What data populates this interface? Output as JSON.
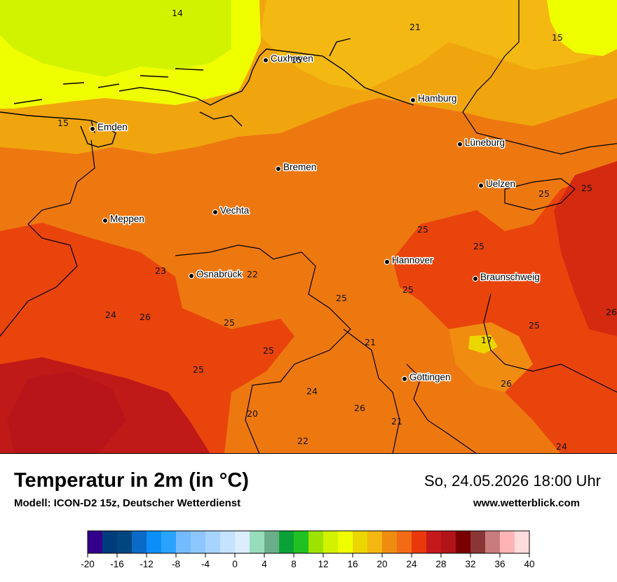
{
  "cities": [
    {
      "name": "Cuxhaven"
    },
    {
      "name": "Hamburg"
    },
    {
      "name": "Emden"
    },
    {
      "name": "Lüneburg"
    },
    {
      "name": "Bremen"
    },
    {
      "name": "Uelzen"
    },
    {
      "name": "Vechta"
    },
    {
      "name": "Meppen"
    },
    {
      "name": "Hannover"
    },
    {
      "name": "Osnabrück"
    },
    {
      "name": "Braunschweig"
    },
    {
      "name": "Göttingen"
    }
  ],
  "temperature_labels": [
    "14",
    "21",
    "15",
    "15",
    "15",
    "25",
    "25",
    "25",
    "25",
    "23",
    "22",
    "25",
    "24",
    "26",
    "25",
    "26",
    "25",
    "21",
    "17",
    "25",
    "25",
    "25",
    "24",
    "26",
    "26",
    "20",
    "21",
    "24",
    "22"
  ],
  "title": "Temperatur in 2m (in °C)",
  "subtitle": "Modell: ICON-D2 15z, Deutscher Wetterdienst",
  "datetime": "So, 24.05.2026 18:00 Uhr",
  "website": "www.wetterblick.com",
  "legend": {
    "ticks": [
      "-20",
      "-16",
      "-12",
      "-8",
      "-4",
      "0",
      "4",
      "8",
      "12",
      "16",
      "20",
      "24",
      "28",
      "32",
      "36",
      "40"
    ],
    "colors": [
      "#33008c",
      "#003b7c",
      "#024680",
      "#0a6ac6",
      "#0b8ef7",
      "#2aa3ff",
      "#74baff",
      "#8ec7ff",
      "#a7d4ff",
      "#c5e2ff",
      "#dbedff",
      "#97dcbb",
      "#6aaf89",
      "#0aa236",
      "#1fc123",
      "#9ee300",
      "#d2f300",
      "#f0ff00",
      "#ecd600",
      "#f3b811",
      "#ef8c10",
      "#f36b15",
      "#e9380c",
      "#c5181b",
      "#b11418",
      "#7a0000",
      "#8b3636",
      "#c87c7c",
      "#ffb4b4",
      "#ffdcdc"
    ]
  }
}
